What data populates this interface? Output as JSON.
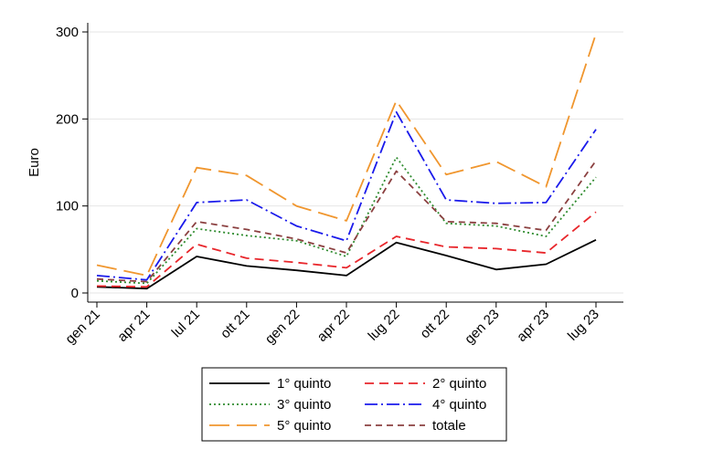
{
  "chart_data": {
    "type": "line",
    "ylabel": "Euro",
    "xlabel": "",
    "ylim": [
      0,
      300
    ],
    "yticks": [
      0,
      100,
      200,
      300
    ],
    "grid": true,
    "legend_position": "bottom",
    "categories": [
      "gen 21",
      "apr 21",
      "lul 21",
      "ott 21",
      "gen 22",
      "apr 22",
      "lug 22",
      "ott 22",
      "gen 23",
      "apr 23",
      "lug 23"
    ],
    "series": [
      {
        "name": "1° quinto",
        "color": "#000000",
        "dash": "solid",
        "values": [
          7,
          5,
          42,
          31,
          26,
          20,
          58,
          43,
          27,
          33,
          61
        ]
      },
      {
        "name": "2° quinto",
        "color": "#e8262b",
        "dash": "dash",
        "values": [
          8,
          7,
          56,
          40,
          35,
          29,
          65,
          53,
          51,
          46,
          93
        ]
      },
      {
        "name": "3° quinto",
        "color": "#2e8b2e",
        "dash": "dot",
        "values": [
          14,
          11,
          74,
          66,
          60,
          42,
          156,
          80,
          77,
          65,
          133
        ]
      },
      {
        "name": "4° quinto",
        "color": "#1a1aeb",
        "dash": "dashdot",
        "values": [
          20,
          15,
          104,
          107,
          77,
          60,
          208,
          107,
          103,
          104,
          188
        ]
      },
      {
        "name": "5° quinto",
        "color": "#f0962e",
        "dash": "longdash",
        "values": [
          32,
          20,
          144,
          135,
          100,
          83,
          221,
          136,
          151,
          122,
          298
        ]
      },
      {
        "name": "totale",
        "color": "#8b4040",
        "dash": "shortdash",
        "values": [
          16,
          13,
          82,
          73,
          62,
          46,
          140,
          82,
          80,
          72,
          152
        ]
      }
    ]
  }
}
